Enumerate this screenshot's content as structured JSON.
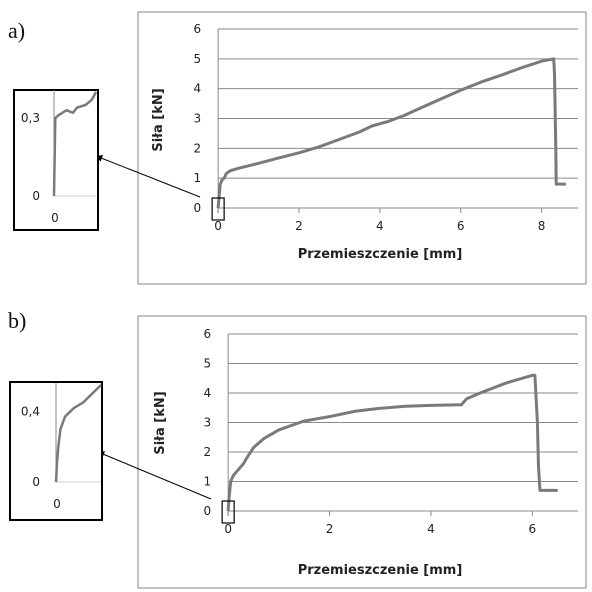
{
  "chart_data": [
    {
      "id": "a",
      "panel_label": "a)",
      "type": "line",
      "xlabel": "Przemieszczenie [mm]",
      "ylabel": "Siła [kN]",
      "xlim": [
        -0.3,
        8.9
      ],
      "ylim": [
        0,
        6
      ],
      "xticks": [
        "0",
        "2",
        "4",
        "6",
        "8"
      ],
      "xtick_values": [
        0,
        2,
        4,
        6,
        8
      ],
      "yticks": [
        "0",
        "1",
        "2",
        "3",
        "4",
        "5",
        "6"
      ],
      "ytick_values": [
        0,
        1,
        2,
        3,
        4,
        5,
        6
      ],
      "grid": true,
      "color": "#7a7a7a",
      "series": [
        {
          "x": [
            0,
            0.02,
            0.05,
            0.1,
            0.15,
            0.2,
            0.3,
            0.5,
            1.0,
            1.5,
            2.0,
            2.5,
            3.0,
            3.5,
            3.8,
            4.2,
            4.6,
            5.0,
            5.5,
            6.0,
            6.5,
            7.0,
            7.5,
            8.0,
            8.3,
            8.32,
            8.35,
            8.36,
            8.6
          ],
          "y": [
            0,
            0.3,
            0.8,
            0.95,
            1.0,
            1.15,
            1.25,
            1.33,
            1.5,
            1.68,
            1.85,
            2.05,
            2.3,
            2.55,
            2.75,
            2.9,
            3.1,
            3.35,
            3.65,
            3.95,
            4.22,
            4.45,
            4.7,
            4.92,
            5.0,
            4.5,
            2.0,
            0.8,
            0.8
          ]
        }
      ],
      "inset": {
        "xticks": [
          "0"
        ],
        "yticks": [
          "0",
          "0,3"
        ],
        "series": [
          {
            "x": [
              0,
              0.03,
              0.1,
              0.2,
              0.3,
              0.45,
              0.55,
              0.75,
              0.9,
              1.0
            ],
            "y": [
              0,
              0.3,
              0.31,
              0.32,
              0.33,
              0.32,
              0.34,
              0.35,
              0.37,
              0.4
            ]
          }
        ]
      }
    },
    {
      "id": "b",
      "panel_label": "b)",
      "type": "line",
      "xlabel": "Przemieszczenie [mm]",
      "ylabel": "Siła [kN]",
      "xlim": [
        -0.2,
        6.9
      ],
      "ylim": [
        0,
        6
      ],
      "xticks": [
        "0",
        "2",
        "4",
        "6"
      ],
      "xtick_values": [
        0,
        2,
        4,
        6
      ],
      "yticks": [
        "0",
        "1",
        "2",
        "3",
        "4",
        "5",
        "6"
      ],
      "ytick_values": [
        0,
        1,
        2,
        3,
        4,
        5,
        6
      ],
      "grid": true,
      "color": "#7a7a7a",
      "series": [
        {
          "x": [
            0,
            0.02,
            0.05,
            0.1,
            0.2,
            0.3,
            0.35,
            0.5,
            0.7,
            1.0,
            1.5,
            2.0,
            2.5,
            3.0,
            3.5,
            4.0,
            4.6,
            4.7,
            5.0,
            5.5,
            6.0,
            6.05,
            6.1,
            6.12,
            6.15,
            6.5
          ],
          "y": [
            0,
            0.5,
            1.0,
            1.2,
            1.4,
            1.6,
            1.75,
            2.15,
            2.45,
            2.75,
            3.05,
            3.2,
            3.38,
            3.48,
            3.55,
            3.58,
            3.6,
            3.8,
            4.02,
            4.35,
            4.6,
            4.6,
            3.0,
            1.5,
            0.7,
            0.7
          ]
        }
      ],
      "inset": {
        "xticks": [
          "0"
        ],
        "yticks": [
          "0",
          "0,4"
        ],
        "series": [
          {
            "x": [
              0,
              0.02,
              0.05,
              0.1,
              0.2,
              0.4,
              0.6,
              0.8,
              1.0
            ],
            "y": [
              0,
              0.1,
              0.2,
              0.3,
              0.37,
              0.42,
              0.45,
              0.5,
              0.55
            ]
          }
        ]
      }
    }
  ]
}
